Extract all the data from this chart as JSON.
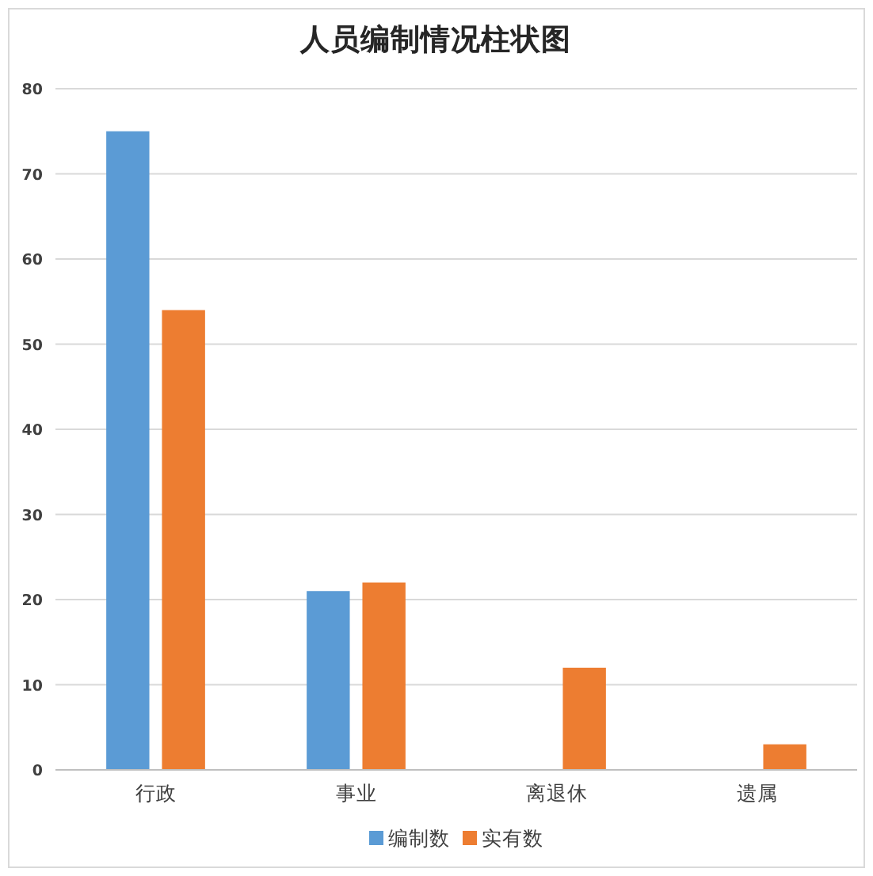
{
  "chart_data": {
    "type": "bar",
    "title": "人员编制情况柱状图",
    "categories": [
      "行政",
      "事业",
      "离退休",
      "遗属"
    ],
    "series": [
      {
        "name": "编制数",
        "color": "#5b9bd5",
        "values": [
          75,
          21,
          null,
          null
        ]
      },
      {
        "name": "实有数",
        "color": "#ed7d31",
        "values": [
          54,
          22,
          12,
          3
        ]
      }
    ],
    "ylim": [
      0,
      80
    ],
    "yticks": [
      0,
      10,
      20,
      30,
      40,
      50,
      60,
      70,
      80
    ],
    "grid": "y",
    "legend": "bottom"
  }
}
